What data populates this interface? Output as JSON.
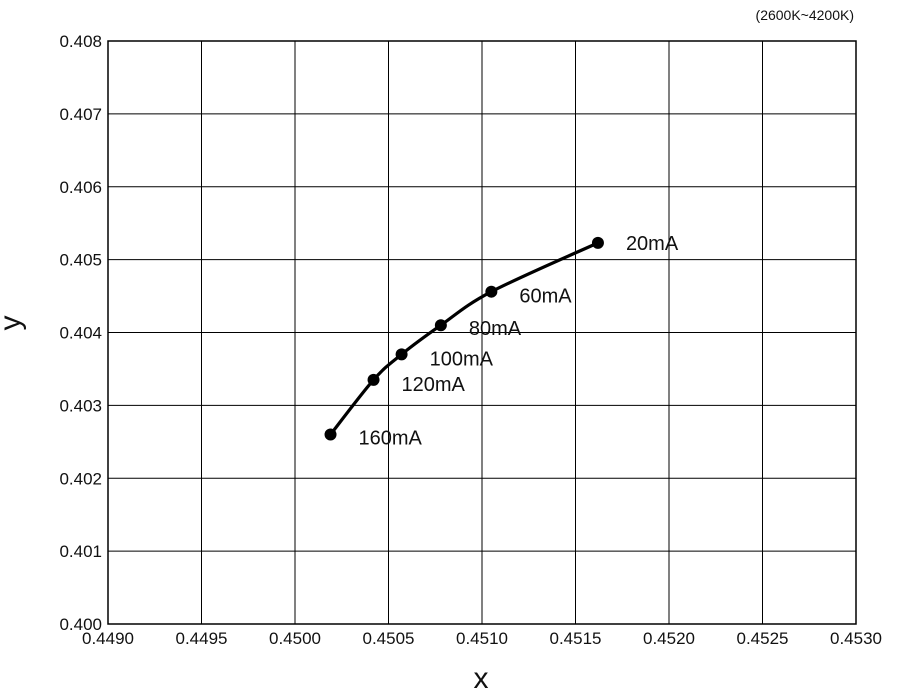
{
  "chart_data": {
    "type": "line",
    "annotation": "(2600K~4200K)",
    "xlabel": "x",
    "ylabel": "y",
    "xlim": [
      0.449,
      0.453
    ],
    "ylim": [
      0.4,
      0.408
    ],
    "x_ticks": [
      "0.4490",
      "0.4495",
      "0.4500",
      "0.4505",
      "0.4510",
      "0.4515",
      "0.4520",
      "0.4525",
      "0.4530"
    ],
    "y_ticks": [
      "0.400",
      "0.401",
      "0.402",
      "0.403",
      "0.404",
      "0.405",
      "0.406",
      "0.407",
      "0.408"
    ],
    "grid": true,
    "series": [
      {
        "color": "#000000",
        "points": [
          {
            "x": 0.45162,
            "y": 0.40523,
            "label": "20mA"
          },
          {
            "x": 0.45105,
            "y": 0.40456,
            "label": "60mA"
          },
          {
            "x": 0.45078,
            "y": 0.4041,
            "label": "80mA"
          },
          {
            "x": 0.45057,
            "y": 0.4037,
            "label": "100mA"
          },
          {
            "x": 0.45042,
            "y": 0.40335,
            "label": "120mA"
          },
          {
            "x": 0.45019,
            "y": 0.4026,
            "label": "160mA"
          }
        ]
      }
    ]
  }
}
